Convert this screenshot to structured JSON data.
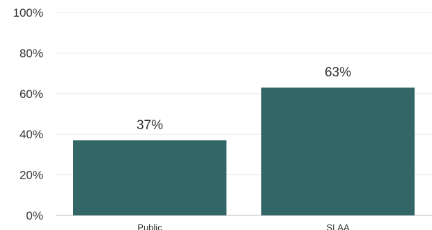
{
  "chart_data": {
    "type": "bar",
    "categories": [
      "Public",
      "SLAA"
    ],
    "values": [
      37,
      63
    ],
    "data_labels": [
      "37%",
      "63%"
    ],
    "ylim": [
      0,
      100
    ],
    "yticks": [
      0,
      20,
      40,
      60,
      80,
      100
    ],
    "ytick_labels": [
      "0%",
      "20%",
      "40%",
      "60%",
      "80%",
      "100%"
    ],
    "grid": true,
    "legend": "none",
    "bar_color": "#336666",
    "grid_color": "#e8e8e8",
    "baseline_color": "#bbbbbb"
  }
}
